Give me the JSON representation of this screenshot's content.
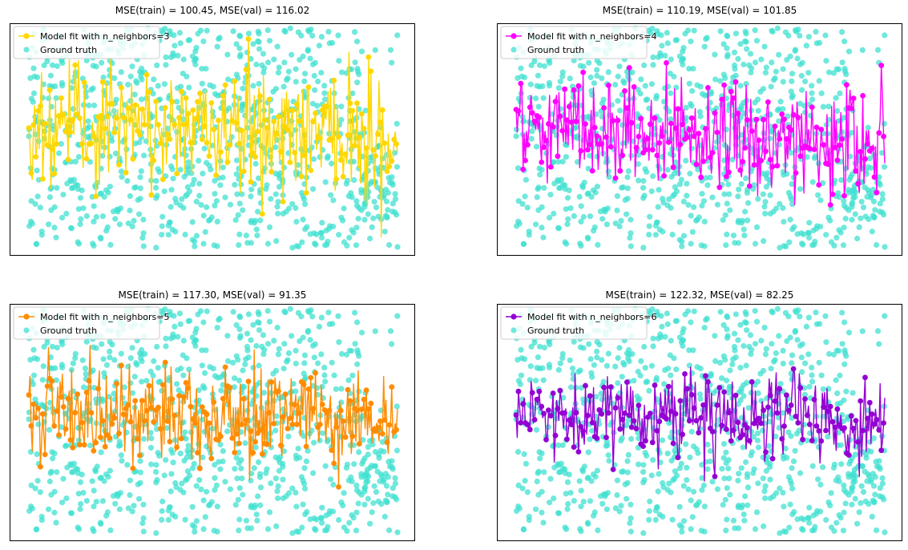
{
  "chart_data": [
    {
      "type": "scatter",
      "title": "MSE(train) = 100.45, MSE(val) = 116.02",
      "xlabel": "",
      "ylabel": "",
      "ticks_visible": false,
      "grid": false,
      "legend_placement": "upper-left",
      "series": [
        {
          "name": "Model fit with n_neighbors=3",
          "kind": "line+markers",
          "color": "#FFD700",
          "mean_level": 0.54,
          "spread": 0.14
        },
        {
          "name": "Ground truth",
          "kind": "markers",
          "color": "#40E0D0"
        }
      ]
    },
    {
      "type": "scatter",
      "title": "MSE(train) = 110.19, MSE(val) = 101.85",
      "xlabel": "",
      "ylabel": "",
      "ticks_visible": false,
      "grid": false,
      "legend_placement": "upper-left",
      "series": [
        {
          "name": "Model fit with n_neighbors=4",
          "kind": "line+markers",
          "color": "#FF00FF",
          "mean_level": 0.52,
          "spread": 0.12
        },
        {
          "name": "Ground truth",
          "kind": "markers",
          "color": "#40E0D0"
        }
      ]
    },
    {
      "type": "scatter",
      "title": "MSE(train) = 117.30, MSE(val) = 91.35",
      "xlabel": "",
      "ylabel": "",
      "ticks_visible": false,
      "grid": false,
      "legend_placement": "upper-left",
      "series": [
        {
          "name": "Model fit with n_neighbors=5",
          "kind": "line+markers",
          "color": "#FF8C00",
          "mean_level": 0.52,
          "spread": 0.11
        },
        {
          "name": "Ground truth",
          "kind": "markers",
          "color": "#40E0D0"
        }
      ]
    },
    {
      "type": "scatter",
      "title": "MSE(train) = 122.32, MSE(val) = 82.25",
      "xlabel": "",
      "ylabel": "",
      "ticks_visible": false,
      "grid": false,
      "legend_placement": "upper-left",
      "series": [
        {
          "name": "Model fit with n_neighbors=6",
          "kind": "line+markers",
          "color": "#9400D3",
          "mean_level": 0.52,
          "spread": 0.1
        },
        {
          "name": "Ground truth",
          "kind": "markers",
          "color": "#40E0D0"
        }
      ]
    }
  ]
}
